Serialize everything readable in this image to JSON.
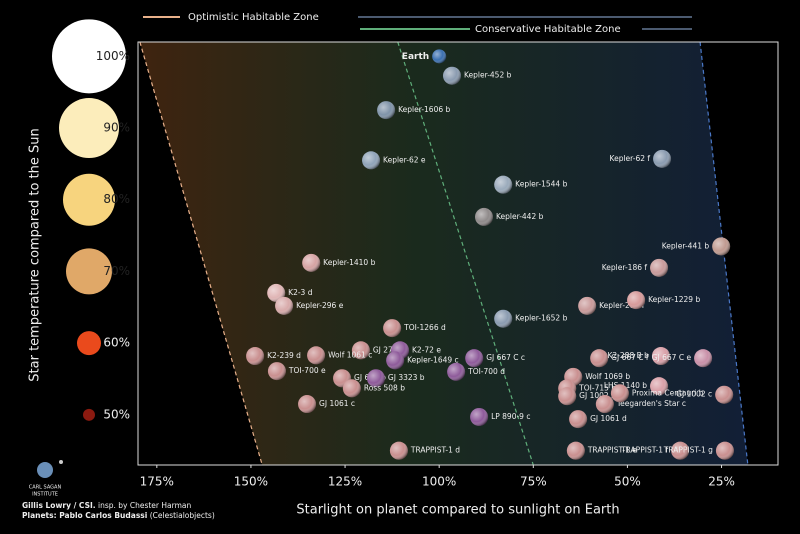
{
  "chart_data": {
    "type": "scatter",
    "xlabel": "Starlight on planet compared to sunlight on Earth",
    "ylabel": "Star temperature compared to the Sun",
    "xlim": [
      180,
      10
    ],
    "ylim": [
      43,
      102
    ],
    "xticks": [
      {
        "value": 175,
        "label": "175%"
      },
      {
        "value": 150,
        "label": "150%"
      },
      {
        "value": 125,
        "label": "125%"
      },
      {
        "value": 100,
        "label": "100%"
      },
      {
        "value": 75,
        "label": "75%"
      },
      {
        "value": 50,
        "label": "50%"
      },
      {
        "value": 25,
        "label": "25%"
      }
    ],
    "yticks": [
      {
        "value": 50,
        "label": "50%"
      },
      {
        "value": 60,
        "label": "60%"
      },
      {
        "value": 70,
        "label": "70%"
      },
      {
        "value": 80,
        "label": "80%"
      },
      {
        "value": 90,
        "label": "90%"
      },
      {
        "value": 100,
        "label": "100%"
      }
    ],
    "tick_colors": [
      "#8b1a10",
      "#ea4a1c",
      "#e0a868",
      "#f7d47e",
      "#fcedbb",
      "#ffffff"
    ],
    "zones": [
      {
        "name": "Optimistic Habitable Zone",
        "color": "#e8b08a",
        "x": [
          179.5,
          147
        ],
        "y": [
          102,
          43
        ]
      },
      {
        "name": "Conservative Habitable Zone",
        "color": "#5fae7a",
        "x": [
          111,
          75
        ],
        "y": [
          102,
          43
        ]
      }
    ],
    "zone_outer_edge": {
      "color": "#4a78c8",
      "x": [
        30.7,
        18
      ],
      "y": [
        102,
        43
      ]
    },
    "labels": [
      "Earth",
      "Kepler-452 b",
      "Kepler-1606 b",
      "Kepler-62 e",
      "Kepler-62 f",
      "Kepler-1544 b",
      "Kepler-442 b",
      "Kepler-441 b",
      "Kepler-1410 b",
      "Kepler-186 f",
      "K2-3 d",
      "Kepler-296 e",
      "Kepler-296 f",
      "Kepler-1229 b",
      "Kepler-1652 b",
      "TOI-1266 d",
      "GJ 273 b",
      "Wolf 1061 c",
      "K2-72 e",
      "Kepler-1649 c",
      "GJ 667 C c",
      "GJ 667 C f",
      "K2-288 B b",
      "GJ 667 C e",
      "K2-239 d",
      "TOI-700 e",
      "GJ 682 b",
      "GJ 3323 b",
      "TOI-700 d",
      "Wolf 1069 b",
      "TOI-715 b",
      "LHS 1140 b",
      "Ross 508 b",
      "GJ 1061 c",
      "LP 890-9 c",
      "GJ 1002 b",
      "Teegarden's Star c",
      "GJ 1061 d",
      "Proxima Centauri b",
      "GJ 1002 c",
      "TRAPPIST-1 d",
      "TRAPPIST-1 e",
      "TRAPPIST-1 f",
      "TRAPPIST-1 g"
    ],
    "x": [
      100,
      96.6,
      114.1,
      118.1,
      40.8,
      83,
      88.1,
      25.1,
      134,
      41.6,
      143.3,
      141.2,
      60.7,
      47.7,
      83,
      112.5,
      120.8,
      132.7,
      110.4,
      111.7,
      90.7,
      57.5,
      41.1,
      29.9,
      148.9,
      143.1,
      125.8,
      116.8,
      95.5,
      64.4,
      66,
      41.6,
      123.2,
      135.1,
      89.4,
      66,
      56,
      63.1,
      52,
      24.3,
      110.7,
      63.7,
      36,
      24.1
    ],
    "values": [
      100,
      97.3,
      92.5,
      85.5,
      85.7,
      82.1,
      77.6,
      73.5,
      71.2,
      70.5,
      67,
      65.2,
      65.2,
      66,
      63.4,
      62.1,
      59,
      58.3,
      59,
      57.6,
      57.9,
      57.9,
      58.2,
      57.9,
      58.2,
      56.1,
      55.1,
      55.1,
      56,
      55.3,
      53.7,
      54,
      53.7,
      51.5,
      49.7,
      52.6,
      51.5,
      49.4,
      53,
      52.8,
      45,
      45,
      45,
      45
    ],
    "colors": [
      "#3a6fb0",
      "#8a9bb0",
      "#7f93a8",
      "#8fa3b8",
      "#8a9bb0",
      "#9aaabb",
      "#8f8a8a",
      "#c09a90",
      "#d6a3a3",
      "#c89a9a",
      "#e0b5b5",
      "#d8aaaa",
      "#c99a9a",
      "#d69a9a",
      "#8a9bb0",
      "#c98f8f",
      "#c98f8f",
      "#c98f8f",
      "#8e5a9a",
      "#8e5a9a",
      "#8e5a9a",
      "#c98f8f",
      "#d9a0a8",
      "#c990a8",
      "#c98f8f",
      "#c98f8f",
      "#c98f8f",
      "#8e5a9a",
      "#8e5a9a",
      "#c98f8f",
      "#c98f8f",
      "#d9a0a8",
      "#c98f8f",
      "#c98f8f",
      "#8e5a9a",
      "#c98f8f",
      "#c98f8f",
      "#c98f8f",
      "#c98f8f",
      "#c98f8f",
      "#c98f8f",
      "#c98f8f",
      "#c98f8f",
      "#c98f8f"
    ]
  },
  "logo": [
    "CARL SAGAN",
    "INSTITUTE"
  ],
  "credits": {
    "line1_bold": "Gillis Lowry / CSI.",
    "line1": "insp. by Chester Harman",
    "line2_bold": "Planets: Pablo Carlos Budassi",
    "line2": "(Celestialobjects)"
  }
}
